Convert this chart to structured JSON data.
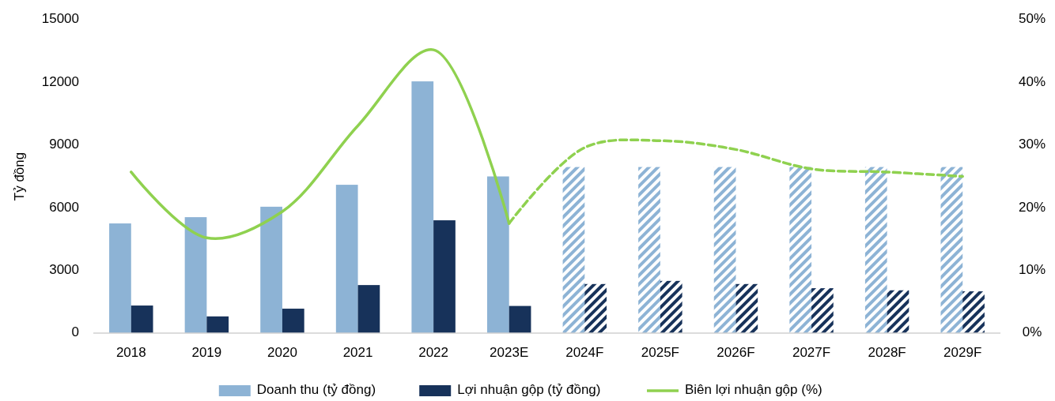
{
  "chart_data": {
    "type": "bar",
    "ylabel": "Tỷ đồng",
    "categories": [
      "2018",
      "2019",
      "2020",
      "2021",
      "2022",
      "2023E",
      "2024F",
      "2025F",
      "2026F",
      "2027F",
      "2028F",
      "2029F"
    ],
    "series": [
      {
        "name": "Doanh thu (tỷ đồng)",
        "color": "#8db3d5",
        "values": [
          5250,
          5550,
          6050,
          7100,
          12050,
          7500,
          7950,
          7950,
          7950,
          7950,
          7950,
          7950
        ]
      },
      {
        "name": "Lợi nhuận gộp (tỷ đồng)",
        "color": "#17325a",
        "values": [
          1320,
          800,
          1170,
          2300,
          5400,
          1300,
          2350,
          2500,
          2350,
          2150,
          2050,
          2000
        ]
      },
      {
        "name": "Biên lợi nhuận gộp (%)",
        "type": "line",
        "axis": "y2",
        "line_style": "solid",
        "color": "#8fd14f",
        "values": [
          25.7,
          15.2,
          19.4,
          33.1,
          45.2,
          17.5,
          null,
          null,
          null,
          null,
          null,
          null
        ]
      },
      {
        "type": "line",
        "axis": "y2",
        "line_style": "dashed",
        "color": "#8fd14f",
        "values": [
          null,
          null,
          null,
          null,
          null,
          17.5,
          29.6,
          30.7,
          29.3,
          26.2,
          25.7,
          25
        ]
      }
    ],
    "ylim": [
      0,
      15000
    ],
    "yticks": [
      0,
      3000,
      6000,
      9000,
      12000,
      15000
    ],
    "y2lim": [
      0,
      50
    ],
    "y2ticks": [
      {
        "value": 0,
        "label": "0%"
      },
      {
        "value": 10,
        "label": "10%"
      },
      {
        "value": 20,
        "label": "20%"
      },
      {
        "value": 30,
        "label": "30%"
      },
      {
        "value": 40,
        "label": "40%"
      },
      {
        "value": 50,
        "label": "50%"
      }
    ],
    "grid": false,
    "legend": "bottom"
  }
}
